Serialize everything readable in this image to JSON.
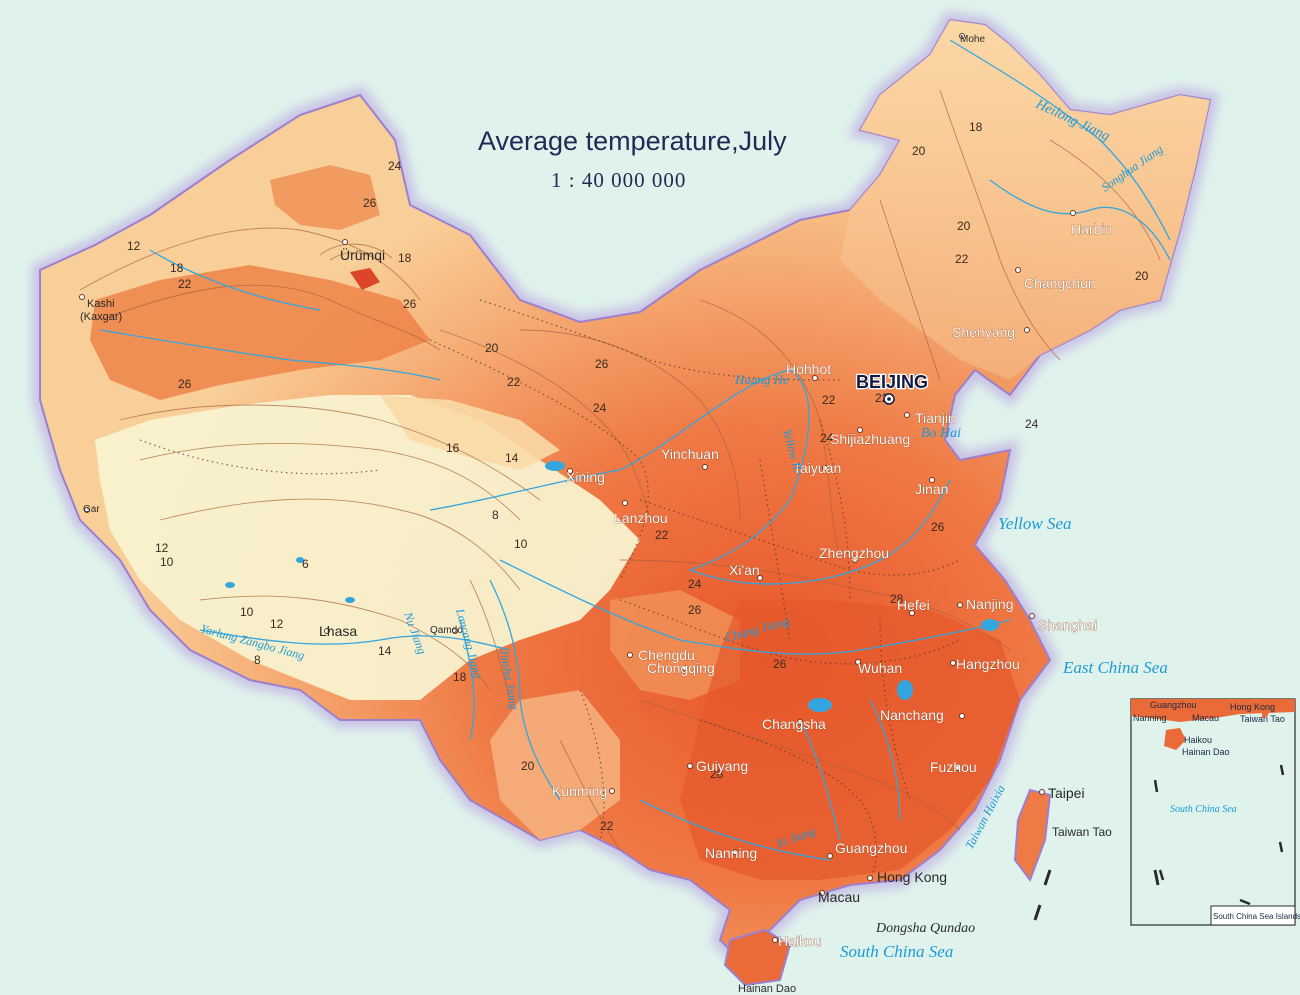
{
  "title": "Average temperature,July",
  "scale": "1 : 40 000 000",
  "capital": "BEIJING",
  "cities": [
    "Mohe",
    "Harbin",
    "Changchun",
    "Shenyang",
    "Ürümqi",
    "Kashi",
    "(Kaxgar)",
    "Hohhot",
    "Tianjin",
    "Shijiazhuang",
    "Taiyuan",
    "Yinchuan",
    "Xining",
    "Lanzhou",
    "Jinan",
    "Zhengzhou",
    "Xi'an",
    "Hefei",
    "Nanjing",
    "Shanghai",
    "Chengdu",
    "Chongqing",
    "Wuhan",
    "Hangzhou",
    "Changsha",
    "Nanchang",
    "Guiyang",
    "Fuzhou",
    "Taipei",
    "Kunming",
    "Nanning",
    "Guangzhou",
    "Hong Kong",
    "Macau",
    "Haikou",
    "Lhasa",
    "Qamdo",
    "Gar"
  ],
  "seas": [
    "Bo Hai",
    "Yellow Sea",
    "East China Sea",
    "South China Sea",
    "Taiwan Haixia",
    "Taiwan Tao",
    "Hainan Dao",
    "Dongsha Qundao"
  ],
  "rivers": [
    "Heilong Jiang",
    "Songhua Jiang",
    "Huang He",
    "Yellow R.",
    "Chang Jiang",
    "Yarlung Zangbo Jiang",
    "Lancang Jiang",
    "Nu Jiang",
    "Jinsha Jiang",
    "Xi Jiang"
  ],
  "isotherms": [
    "6",
    "8",
    "10",
    "12",
    "14",
    "16",
    "18",
    "20",
    "22",
    "24",
    "26",
    "28"
  ],
  "inset": {
    "labels": [
      "Guangzhou",
      "Hong Kong",
      "Nanning",
      "Macau",
      "Haikou",
      "Hainan Dao",
      "Taiwan Tao",
      "South China Sea"
    ],
    "caption": "South China Sea Islands"
  },
  "colors": {
    "sea": "#dff2ec",
    "cold": "#f7f1c9",
    "mild": "#f9d39a",
    "warm": "#f5a96b",
    "hot": "#ee7a45",
    "hottest": "#e75a2e",
    "river": "#33a6e0",
    "border": "#b49ad6"
  }
}
